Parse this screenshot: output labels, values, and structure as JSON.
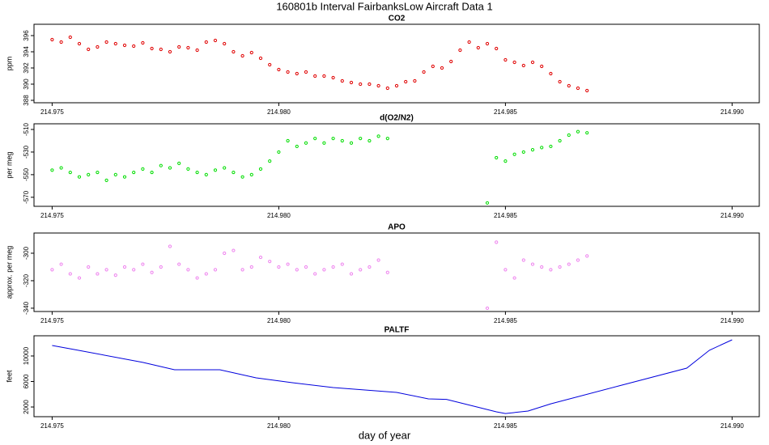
{
  "title": "160801b   Interval FairbanksLow Aircraft Data 1",
  "xlabel": "day of year",
  "chart_data": [
    {
      "type": "scatter",
      "title": "CO2",
      "ylabel": "ppm",
      "color": "#e00000",
      "xlim": [
        214.9746,
        214.9906
      ],
      "xticks": [
        214.975,
        {
          "value": 214.98,
          "label": "214.980"
        },
        214.985,
        {
          "value": 214.99,
          "label": "214.990"
        }
      ],
      "ylim": [
        387.7,
        397.4
      ],
      "yticks": [
        388,
        390,
        392,
        394,
        396
      ],
      "x": [
        214.975,
        214.9752,
        214.9754,
        214.9756,
        214.9758,
        214.976,
        214.9762,
        214.9764,
        214.9766,
        214.9768,
        214.977,
        214.9772,
        214.9774,
        214.9776,
        214.9778,
        214.978,
        214.9782,
        214.9784,
        214.9786,
        214.9788,
        214.979,
        214.9792,
        214.9794,
        214.9796,
        214.9798,
        214.98,
        214.9802,
        214.9804,
        214.9806,
        214.9808,
        214.981,
        214.9812,
        214.9814,
        214.9816,
        214.9818,
        214.982,
        214.9822,
        214.9824,
        214.9826,
        214.9828,
        214.983,
        214.9832,
        214.9834,
        214.9836,
        214.9838,
        214.984,
        214.9842,
        214.9844,
        214.9846,
        214.9848,
        214.985,
        214.9852,
        214.9854,
        214.9856,
        214.9858,
        214.986,
        214.9862,
        214.9864,
        214.9866,
        214.9868
      ],
      "values": [
        395.5,
        395.2,
        395.8,
        395.0,
        394.3,
        394.6,
        395.2,
        395.0,
        394.8,
        394.7,
        395.1,
        394.4,
        394.3,
        394.0,
        394.6,
        394.5,
        394.2,
        395.2,
        395.4,
        395.0,
        394.0,
        393.5,
        393.9,
        393.2,
        392.4,
        391.8,
        391.5,
        391.3,
        391.5,
        391.0,
        391.0,
        390.8,
        390.4,
        390.2,
        390.0,
        390.0,
        389.8,
        389.5,
        389.8,
        390.3,
        390.4,
        391.5,
        392.2,
        392.0,
        392.8,
        394.2,
        395.2,
        394.5,
        395.0,
        394.4,
        393.0,
        392.7,
        392.3,
        392.7,
        392.2,
        391.3,
        390.3,
        389.8,
        389.5,
        389.2
      ]
    },
    {
      "type": "scatter",
      "title": "d(O2/N2)",
      "ylabel": "per meg",
      "color": "#00dd00",
      "xlim": [
        214.9746,
        214.9906
      ],
      "xticks": [
        214.975,
        {
          "value": 214.98,
          "label": "214.980"
        },
        214.985,
        {
          "value": 214.99,
          "label": "214.990"
        }
      ],
      "ylim": [
        -578,
        -505
      ],
      "yticks": [
        -510,
        -530,
        -550,
        -570
      ],
      "x": [
        214.975,
        214.9752,
        214.9754,
        214.9756,
        214.9758,
        214.976,
        214.9762,
        214.9764,
        214.9766,
        214.9768,
        214.977,
        214.9772,
        214.9774,
        214.9776,
        214.9778,
        214.978,
        214.9782,
        214.9784,
        214.9786,
        214.9788,
        214.979,
        214.9792,
        214.9794,
        214.9796,
        214.9798,
        214.98,
        214.9802,
        214.9804,
        214.9806,
        214.9808,
        214.981,
        214.9812,
        214.9814,
        214.9816,
        214.9818,
        214.982,
        214.9822,
        214.9824,
        214.9846,
        214.9848,
        214.985,
        214.9852,
        214.9854,
        214.9856,
        214.9858,
        214.986,
        214.9862,
        214.9864,
        214.9866,
        214.9868
      ],
      "values": [
        -546,
        -544,
        -548,
        -552,
        -550,
        -548,
        -555,
        -550,
        -552,
        -548,
        -545,
        -548,
        -542,
        -544,
        -540,
        -545,
        -548,
        -550,
        -546,
        -544,
        -548,
        -552,
        -550,
        -545,
        -538,
        -530,
        -520,
        -525,
        -522,
        -518,
        -522,
        -518,
        -520,
        -522,
        -518,
        -520,
        -516,
        -518,
        -575,
        -535,
        -538,
        -532,
        -530,
        -528,
        -526,
        -525,
        -520,
        -515,
        -512,
        -513
      ]
    },
    {
      "type": "scatter",
      "title": "APO",
      "ylabel": "approx. per meg",
      "color": "#ee82ee",
      "xlim": [
        214.9746,
        214.9906
      ],
      "xticks": [
        214.975,
        {
          "value": 214.98,
          "label": "214.980"
        },
        214.985,
        {
          "value": 214.99,
          "label": "214.990"
        }
      ],
      "ylim": [
        -342.4,
        -285.3
      ],
      "yticks": [
        -300,
        -320,
        -340
      ],
      "x": [
        214.975,
        214.9752,
        214.9754,
        214.9756,
        214.9758,
        214.976,
        214.9762,
        214.9764,
        214.9766,
        214.9768,
        214.977,
        214.9772,
        214.9774,
        214.9776,
        214.9778,
        214.978,
        214.9782,
        214.9784,
        214.9786,
        214.9788,
        214.979,
        214.9792,
        214.9794,
        214.9796,
        214.9798,
        214.98,
        214.9802,
        214.9804,
        214.9806,
        214.9808,
        214.981,
        214.9812,
        214.9814,
        214.9816,
        214.9818,
        214.982,
        214.9822,
        214.9824,
        214.9846,
        214.9848,
        214.985,
        214.9852,
        214.9854,
        214.9856,
        214.9858,
        214.986,
        214.9862,
        214.9864,
        214.9866,
        214.9868
      ],
      "values": [
        -312,
        -308,
        -315,
        -318,
        -310,
        -315,
        -312,
        -316,
        -310,
        -312,
        -308,
        -314,
        -310,
        -295,
        -308,
        -312,
        -318,
        -315,
        -312,
        -300,
        -298,
        -312,
        -310,
        -303,
        -306,
        -310,
        -308,
        -312,
        -310,
        -315,
        -312,
        -310,
        -308,
        -315,
        -312,
        -310,
        -305,
        -314,
        -340,
        -292,
        -312,
        -318,
        -305,
        -308,
        -310,
        -312,
        -310,
        -308,
        -305,
        -302
      ]
    },
    {
      "type": "line",
      "title": "PALTF",
      "ylabel": "feet",
      "color": "#0000dd",
      "xlim": [
        214.9746,
        214.9906
      ],
      "xticks": [
        214.975,
        {
          "value": 214.98,
          "label": "214.980"
        },
        214.985,
        {
          "value": 214.99,
          "label": "214.990"
        }
      ],
      "ylim": [
        480,
        13170
      ],
      "yticks": [
        2000,
        6000,
        10000
      ],
      "x": [
        214.975,
        214.9755,
        214.977,
        214.9777,
        214.9787,
        214.9795,
        214.9803,
        214.9812,
        214.9826,
        214.9833,
        214.9837,
        214.9843,
        214.9848,
        214.985,
        214.9855,
        214.986,
        214.9875,
        214.989,
        214.9895,
        214.99
      ],
      "values": [
        11650,
        11000,
        9000,
        7840,
        7840,
        6570,
        5810,
        5050,
        4290,
        3270,
        3200,
        2130,
        1240,
        980,
        1365,
        2500,
        5300,
        8100,
        10900,
        12540
      ]
    }
  ]
}
